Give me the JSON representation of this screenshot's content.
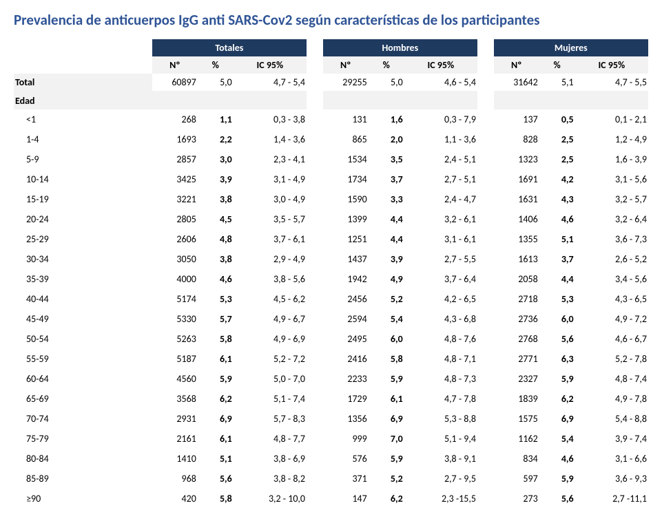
{
  "title": "Prevalencia de anticuerpos IgG anti SARS-Cov2 según características de los participantes",
  "colors": {
    "title": "#2f5496",
    "header_bg": "#1f3a5f",
    "header_fg": "#ffffff",
    "sub_bg": "#f2f2f2",
    "text": "#000000"
  },
  "groups": [
    "Totales",
    "Hombres",
    "Mujeres"
  ],
  "sub_headers": [
    "Nº",
    "%",
    "IC 95%"
  ],
  "total_label": "Total",
  "section_label": "Edad",
  "total_row": {
    "t": {
      "n": "60897",
      "p": "5,0",
      "ic": "4,7  -   5,4"
    },
    "h": {
      "n": "29255",
      "p": "5,0",
      "ic": "4,6  -   5,4"
    },
    "m": {
      "n": "31642",
      "p": "5,1",
      "ic": "4,7  -   5,5"
    }
  },
  "rows": [
    {
      "label": "<1",
      "t": {
        "n": "268",
        "p": "1,1",
        "ic": "0,3  -   3,8"
      },
      "h": {
        "n": "131",
        "p": "1,6",
        "ic": "0,3  -   7,9"
      },
      "m": {
        "n": "137",
        "p": "0,5",
        "ic": "0,1  -   2,1"
      }
    },
    {
      "label": "1-4",
      "t": {
        "n": "1693",
        "p": "2,2",
        "ic": "1,4  -   3,6"
      },
      "h": {
        "n": "865",
        "p": "2,0",
        "ic": "1,1  -   3,6"
      },
      "m": {
        "n": "828",
        "p": "2,5",
        "ic": "1,2  -   4,9"
      }
    },
    {
      "label": "5-9",
      "t": {
        "n": "2857",
        "p": "3,0",
        "ic": "2,3  -   4,1"
      },
      "h": {
        "n": "1534",
        "p": "3,5",
        "ic": "2,4  -   5,1"
      },
      "m": {
        "n": "1323",
        "p": "2,5",
        "ic": "1,6  -   3,9"
      }
    },
    {
      "label": "10-14",
      "t": {
        "n": "3425",
        "p": "3,9",
        "ic": "3,1  -   4,9"
      },
      "h": {
        "n": "1734",
        "p": "3,7",
        "ic": "2,7  -   5,1"
      },
      "m": {
        "n": "1691",
        "p": "4,2",
        "ic": "3,1  -   5,6"
      }
    },
    {
      "label": "15-19",
      "t": {
        "n": "3221",
        "p": "3,8",
        "ic": "3,0  -   4,9"
      },
      "h": {
        "n": "1590",
        "p": "3,3",
        "ic": "2,4  -   4,7"
      },
      "m": {
        "n": "1631",
        "p": "4,3",
        "ic": "3,2  -   5,7"
      }
    },
    {
      "label": "20-24",
      "t": {
        "n": "2805",
        "p": "4,5",
        "ic": "3,5  -   5,7"
      },
      "h": {
        "n": "1399",
        "p": "4,4",
        "ic": "3,2  -   6,1"
      },
      "m": {
        "n": "1406",
        "p": "4,6",
        "ic": "3,2  -   6,4"
      }
    },
    {
      "label": "25-29",
      "t": {
        "n": "2606",
        "p": "4,8",
        "ic": "3,7  -   6,1"
      },
      "h": {
        "n": "1251",
        "p": "4,4",
        "ic": "3,1  -   6,1"
      },
      "m": {
        "n": "1355",
        "p": "5,1",
        "ic": "3,6  -   7,3"
      }
    },
    {
      "label": "30-34",
      "t": {
        "n": "3050",
        "p": "3,8",
        "ic": "2,9  -   4,9"
      },
      "h": {
        "n": "1437",
        "p": "3,9",
        "ic": "2,7  -   5,5"
      },
      "m": {
        "n": "1613",
        "p": "3,7",
        "ic": "2,6  -   5,2"
      }
    },
    {
      "label": "35-39",
      "t": {
        "n": "4000",
        "p": "4,6",
        "ic": "3,8  -   5,6"
      },
      "h": {
        "n": "1942",
        "p": "4,9",
        "ic": "3,7  -   6,4"
      },
      "m": {
        "n": "2058",
        "p": "4,4",
        "ic": "3,4  -   5,6"
      }
    },
    {
      "label": "40-44",
      "t": {
        "n": "5174",
        "p": "5,3",
        "ic": "4,5  -   6,2"
      },
      "h": {
        "n": "2456",
        "p": "5,2",
        "ic": "4,2  -   6,5"
      },
      "m": {
        "n": "2718",
        "p": "5,3",
        "ic": "4,3  -   6,5"
      }
    },
    {
      "label": "45-49",
      "t": {
        "n": "5330",
        "p": "5,7",
        "ic": "4,9  -   6,7"
      },
      "h": {
        "n": "2594",
        "p": "5,4",
        "ic": "4,3  -   6,8"
      },
      "m": {
        "n": "2736",
        "p": "6,0",
        "ic": "4,9  -   7,2"
      }
    },
    {
      "label": "50-54",
      "t": {
        "n": "5263",
        "p": "5,8",
        "ic": "4,9  -   6,9"
      },
      "h": {
        "n": "2495",
        "p": "6,0",
        "ic": "4,8  -   7,6"
      },
      "m": {
        "n": "2768",
        "p": "5,6",
        "ic": "4,6  -   6,7"
      }
    },
    {
      "label": "55-59",
      "t": {
        "n": "5187",
        "p": "6,1",
        "ic": "5,2  -   7,2"
      },
      "h": {
        "n": "2416",
        "p": "5,8",
        "ic": "4,8  -   7,1"
      },
      "m": {
        "n": "2771",
        "p": "6,3",
        "ic": "5,2  -   7,8"
      }
    },
    {
      "label": "60-64",
      "t": {
        "n": "4560",
        "p": "5,9",
        "ic": "5,0  -   7,0"
      },
      "h": {
        "n": "2233",
        "p": "5,9",
        "ic": "4,8  -   7,3"
      },
      "m": {
        "n": "2327",
        "p": "5,9",
        "ic": "4,8  -   7,4"
      }
    },
    {
      "label": "65-69",
      "t": {
        "n": "3568",
        "p": "6,2",
        "ic": "5,1  -   7,4"
      },
      "h": {
        "n": "1729",
        "p": "6,1",
        "ic": "4,7  -   7,8"
      },
      "m": {
        "n": "1839",
        "p": "6,2",
        "ic": "4,9  -   7,8"
      }
    },
    {
      "label": "70-74",
      "t": {
        "n": "2931",
        "p": "6,9",
        "ic": "5,7  -   8,3"
      },
      "h": {
        "n": "1356",
        "p": "6,9",
        "ic": "5,3  -   8,8"
      },
      "m": {
        "n": "1575",
        "p": "6,9",
        "ic": "5,4  -   8,8"
      }
    },
    {
      "label": "75-79",
      "t": {
        "n": "2161",
        "p": "6,1",
        "ic": "4,8  -   7,7"
      },
      "h": {
        "n": "999",
        "p": "7,0",
        "ic": "5,1  -   9,4"
      },
      "m": {
        "n": "1162",
        "p": "5,4",
        "ic": "3,9  -   7,4"
      }
    },
    {
      "label": "80-84",
      "t": {
        "n": "1410",
        "p": "5,1",
        "ic": "3,8  -   6,9"
      },
      "h": {
        "n": "576",
        "p": "5,9",
        "ic": "3,8  -   9,1"
      },
      "m": {
        "n": "834",
        "p": "4,6",
        "ic": "3,1  -   6,6"
      }
    },
    {
      "label": "85-89",
      "t": {
        "n": "968",
        "p": "5,6",
        "ic": "3,8  -   8,2"
      },
      "h": {
        "n": "371",
        "p": "5,2",
        "ic": "2,7  -   9,5"
      },
      "m": {
        "n": "597",
        "p": "5,9",
        "ic": "3,6  -   9,3"
      }
    },
    {
      "label": "≥90",
      "t": {
        "n": "420",
        "p": "5,8",
        "ic": "3,2  - 10,0"
      },
      "h": {
        "n": "147",
        "p": "6,2",
        "ic": "2,3  -15,5"
      },
      "m": {
        "n": "273",
        "p": "5,6",
        "ic": "2,7  -11,1"
      }
    }
  ]
}
